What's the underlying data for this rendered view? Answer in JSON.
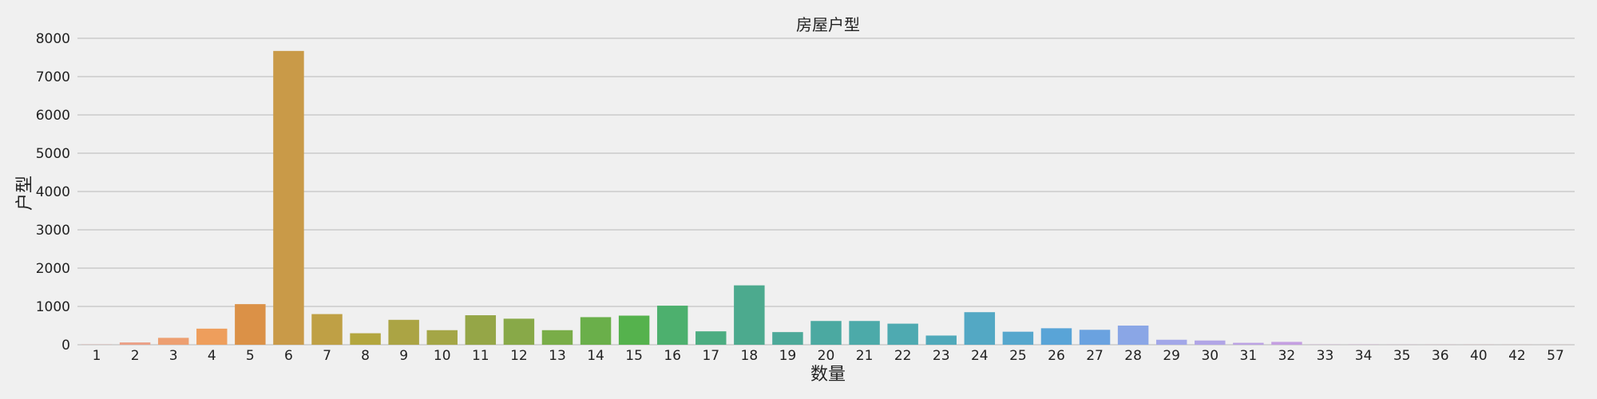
{
  "chart_data": {
    "type": "bar",
    "title": "房屋户型",
    "xlabel": "数量",
    "ylabel": "户型",
    "ylim": [
      0,
      8000
    ],
    "yticks": [
      0,
      1000,
      2000,
      3000,
      4000,
      5000,
      6000,
      7000,
      8000
    ],
    "grid": "horizontal",
    "categories": [
      "1",
      "2",
      "3",
      "4",
      "5",
      "6",
      "7",
      "8",
      "9",
      "10",
      "11",
      "12",
      "13",
      "14",
      "15",
      "16",
      "17",
      "18",
      "19",
      "20",
      "21",
      "22",
      "23",
      "24",
      "25",
      "26",
      "27",
      "28",
      "29",
      "30",
      "31",
      "32",
      "33",
      "34",
      "35",
      "36",
      "40",
      "42",
      "57"
    ],
    "values": [
      5,
      60,
      180,
      420,
      1060,
      7670,
      800,
      300,
      650,
      380,
      770,
      680,
      380,
      720,
      760,
      1020,
      350,
      1550,
      330,
      620,
      620,
      550,
      240,
      850,
      340,
      430,
      390,
      500,
      130,
      110,
      50,
      75,
      5,
      5,
      3,
      3,
      3,
      2,
      2
    ],
    "colors": [
      "#e79e94",
      "#ea9f85",
      "#ed9f71",
      "#ee9e5c",
      "#db9147",
      "#c99a48",
      "#bfa045",
      "#b3a63e",
      "#aba444",
      "#a4a646",
      "#95a647",
      "#88a948",
      "#79ad48",
      "#6aaf4a",
      "#55b24d",
      "#4db06e",
      "#4cad81",
      "#4caa8e",
      "#4ca999",
      "#4ba9a1",
      "#4caaa9",
      "#4eaab1",
      "#50a9ba",
      "#53a8c4",
      "#56a7cd",
      "#59a4d7",
      "#6aa2e0",
      "#8aa6e6",
      "#a2a7e8",
      "#b1a5e6",
      "#bba2e3",
      "#c49fe1",
      "#cf9fd8",
      "#d59ccf",
      "#dc9ac5",
      "#e099b8",
      "#e399ad",
      "#e59ba3",
      "#e79c9c"
    ]
  }
}
